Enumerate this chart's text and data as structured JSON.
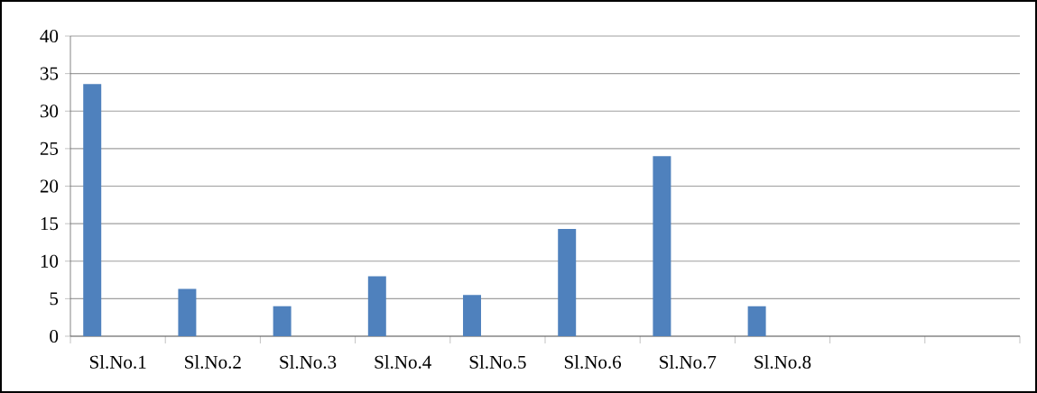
{
  "chart_data": {
    "type": "bar",
    "categories": [
      "Sl.No.1",
      "Sl.No.2",
      "Sl.No.3",
      "Sl.No.4",
      "Sl.No.5",
      "Sl.No.6",
      "Sl.No.7",
      "Sl.No.8",
      null,
      null
    ],
    "values": [
      33.6,
      6.3,
      4,
      8,
      5.5,
      14.3,
      24,
      4,
      null,
      null
    ],
    "color": "#4f81bd",
    "ylim": [
      0,
      40
    ],
    "yticks": [
      0,
      5,
      10,
      15,
      20,
      25,
      30,
      35,
      40
    ],
    "grid": "y"
  }
}
